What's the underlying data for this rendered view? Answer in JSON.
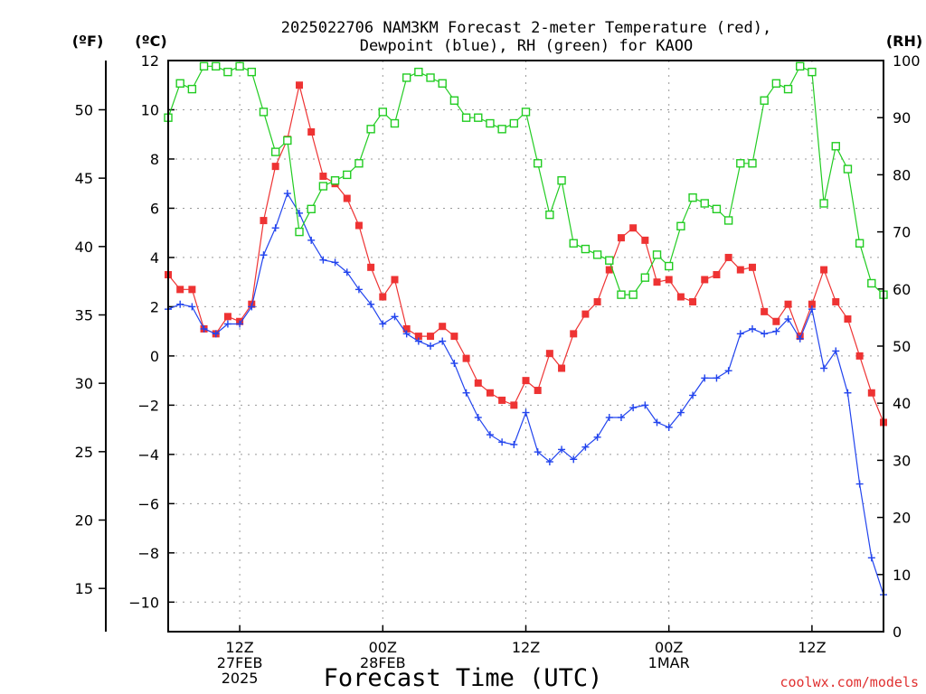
{
  "chart_data": {
    "type": "line",
    "title": "2025022706 NAM3KM Forecast 2-meter Temperature (red),",
    "subtitle": "Dewpoint (blue), RH (green) for KAOO",
    "xlabel": "Forecast Time (UTC)",
    "credit": "coolwx.com/models",
    "units": {
      "f": "(ºF)",
      "c": "(ºC)",
      "rh": "(RH)"
    },
    "axes": {
      "left_c": {
        "range": [
          -11.2,
          12.0
        ],
        "ticks": [
          "12",
          "10",
          "8",
          "6",
          "4",
          "2",
          "0",
          "−2",
          "−4",
          "−6",
          "−8",
          "−10"
        ]
      },
      "left_f": {
        "ticks": [
          "50",
          "45",
          "40",
          "35",
          "30",
          "25",
          "20",
          "15"
        ]
      },
      "right_rh": {
        "range": [
          0,
          100
        ],
        "ticks": [
          "100",
          "90",
          "80",
          "70",
          "60",
          "50",
          "40",
          "30",
          "20",
          "10",
          "0"
        ]
      },
      "x_hours": [
        0,
        60
      ],
      "x_ticks": [
        {
          "hour": 6,
          "lines": [
            "12Z",
            "27FEB",
            "2025"
          ]
        },
        {
          "hour": 18,
          "lines": [
            "00Z",
            "28FEB"
          ]
        },
        {
          "hour": 30,
          "lines": [
            "12Z"
          ]
        },
        {
          "hour": 42,
          "lines": [
            "00Z",
            "1MAR"
          ]
        },
        {
          "hour": 54,
          "lines": [
            "12Z"
          ]
        }
      ]
    },
    "series": [
      {
        "name": "Temperature",
        "color": "#ee3333",
        "marker": "square-filled",
        "axis": "c",
        "values": [
          3.3,
          2.7,
          2.7,
          1.1,
          0.9,
          1.6,
          1.4,
          2.1,
          5.5,
          7.7,
          8.8,
          11.0,
          9.1,
          7.3,
          7.0,
          6.4,
          5.3,
          3.6,
          2.4,
          3.1,
          1.1,
          0.8,
          0.8,
          1.2,
          0.8,
          -0.1,
          -1.1,
          -1.5,
          -1.8,
          -2.0,
          -1.0,
          -1.4,
          0.1,
          -0.5,
          0.9,
          1.7,
          2.2,
          3.5,
          4.8,
          5.2,
          4.7,
          3.0,
          3.1,
          2.4,
          2.2,
          3.1,
          3.3,
          4.0,
          3.5,
          3.6,
          1.8,
          1.4,
          2.1,
          0.8,
          2.1,
          3.5,
          2.2,
          1.5,
          0.0,
          -1.5,
          -2.7
        ]
      },
      {
        "name": "Dewpoint",
        "color": "#2244ee",
        "marker": "plus",
        "axis": "c",
        "values": [
          1.9,
          2.1,
          2.0,
          1.1,
          0.9,
          1.3,
          1.3,
          2.0,
          4.1,
          5.2,
          6.6,
          5.8,
          4.7,
          3.9,
          3.8,
          3.4,
          2.7,
          2.1,
          1.3,
          1.6,
          0.9,
          0.6,
          0.4,
          0.6,
          -0.3,
          -1.5,
          -2.5,
          -3.2,
          -3.5,
          -3.6,
          -2.3,
          -3.9,
          -4.3,
          -3.8,
          -4.2,
          -3.7,
          -3.3,
          -2.5,
          -2.5,
          -2.1,
          -2.0,
          -2.7,
          -2.9,
          -2.3,
          -1.6,
          -0.9,
          -0.9,
          -0.6,
          0.9,
          1.1,
          0.9,
          1.0,
          1.5,
          0.7,
          1.9,
          -0.5,
          0.2,
          -1.5,
          -5.2,
          -8.2,
          -9.7
        ]
      },
      {
        "name": "RH",
        "color": "#22cc22",
        "marker": "square-open",
        "axis": "rh",
        "values": [
          90,
          96,
          95,
          99,
          99,
          98,
          99,
          98,
          91,
          84,
          86,
          70,
          74,
          78,
          79,
          80,
          82,
          88,
          91,
          89,
          97,
          98,
          97,
          96,
          93,
          90,
          90,
          89,
          88,
          89,
          91,
          82,
          73,
          79,
          68,
          67,
          66,
          65,
          59,
          59,
          62,
          66,
          64,
          71,
          76,
          75,
          74,
          72,
          82,
          82,
          93,
          96,
          95,
          99,
          98,
          75,
          85,
          81,
          68,
          61,
          59
        ]
      }
    ]
  }
}
